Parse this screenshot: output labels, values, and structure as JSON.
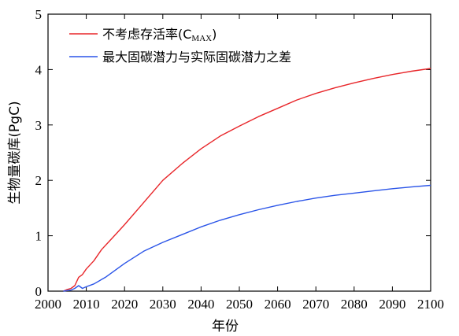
{
  "chart_data": {
    "type": "line",
    "xlabel": "年份",
    "ylabel": "生物量碳库(PgC)",
    "xlim": [
      2000,
      2100
    ],
    "ylim": [
      0,
      5
    ],
    "xticks": [
      2000,
      2010,
      2020,
      2030,
      2040,
      2050,
      2060,
      2070,
      2080,
      2090,
      2100
    ],
    "yticks": [
      0,
      1,
      2,
      3,
      4,
      5
    ],
    "grid": false,
    "legend_position": "top-left",
    "series": [
      {
        "name": "不考虑存活率(C",
        "name_sub": "MAX",
        "name_suffix": ")",
        "color": "#e8262a",
        "x": [
          2004,
          2005,
          2006,
          2007,
          2008,
          2009,
          2010,
          2012,
          2014,
          2016,
          2018,
          2020,
          2025,
          2030,
          2035,
          2040,
          2045,
          2050,
          2055,
          2060,
          2065,
          2070,
          2075,
          2080,
          2085,
          2090,
          2095,
          2100
        ],
        "y": [
          0.0,
          0.03,
          0.05,
          0.1,
          0.25,
          0.3,
          0.4,
          0.55,
          0.75,
          0.9,
          1.05,
          1.2,
          1.6,
          2.0,
          2.3,
          2.57,
          2.8,
          2.98,
          3.15,
          3.3,
          3.45,
          3.57,
          3.67,
          3.76,
          3.84,
          3.91,
          3.97,
          4.02
        ]
      },
      {
        "name": "最大固碳潜力与实际固碳潜力之差",
        "color": "#2a54e8",
        "x": [
          2004,
          2005,
          2006,
          2007,
          2008,
          2009,
          2010,
          2012,
          2015,
          2020,
          2025,
          2030,
          2035,
          2040,
          2045,
          2050,
          2055,
          2060,
          2065,
          2070,
          2075,
          2080,
          2085,
          2090,
          2095,
          2100
        ],
        "y": [
          0.0,
          0.01,
          0.02,
          0.05,
          0.1,
          0.05,
          0.08,
          0.13,
          0.25,
          0.5,
          0.72,
          0.88,
          1.02,
          1.16,
          1.28,
          1.38,
          1.47,
          1.55,
          1.62,
          1.68,
          1.73,
          1.77,
          1.81,
          1.85,
          1.88,
          1.91
        ]
      }
    ]
  }
}
